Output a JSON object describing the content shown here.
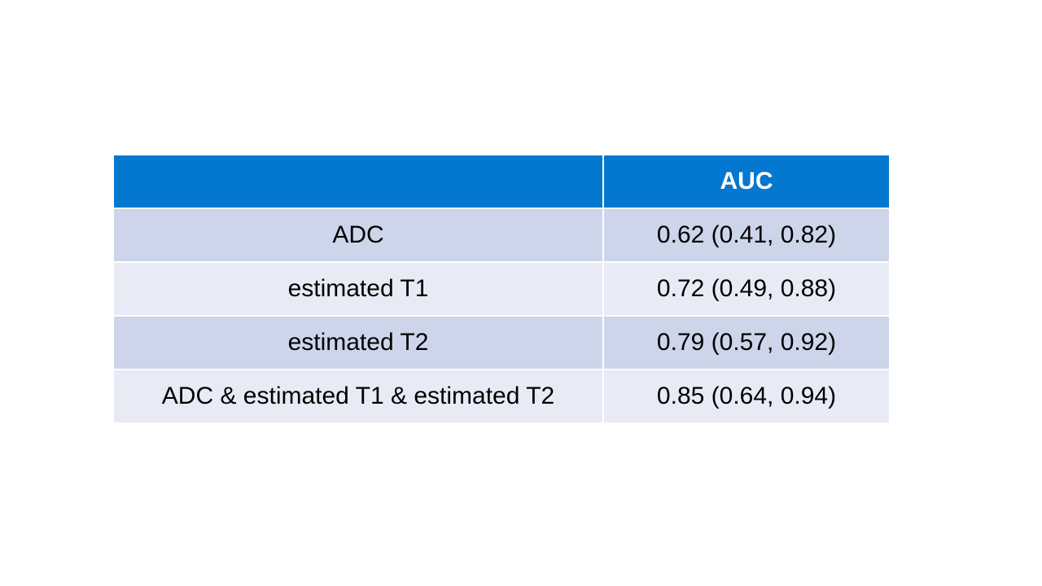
{
  "table": {
    "header": "AUC",
    "rows": [
      [
        "ADC",
        "0.62 (0.41, 0.82)"
      ],
      [
        "estimated T1",
        "0.72 (0.49, 0.88)"
      ],
      [
        "estimated T2",
        "0.79 (0.57, 0.92)"
      ],
      [
        "ADC & estimated T1 & estimated T2",
        "0.85 (0.64, 0.94)"
      ]
    ]
  }
}
